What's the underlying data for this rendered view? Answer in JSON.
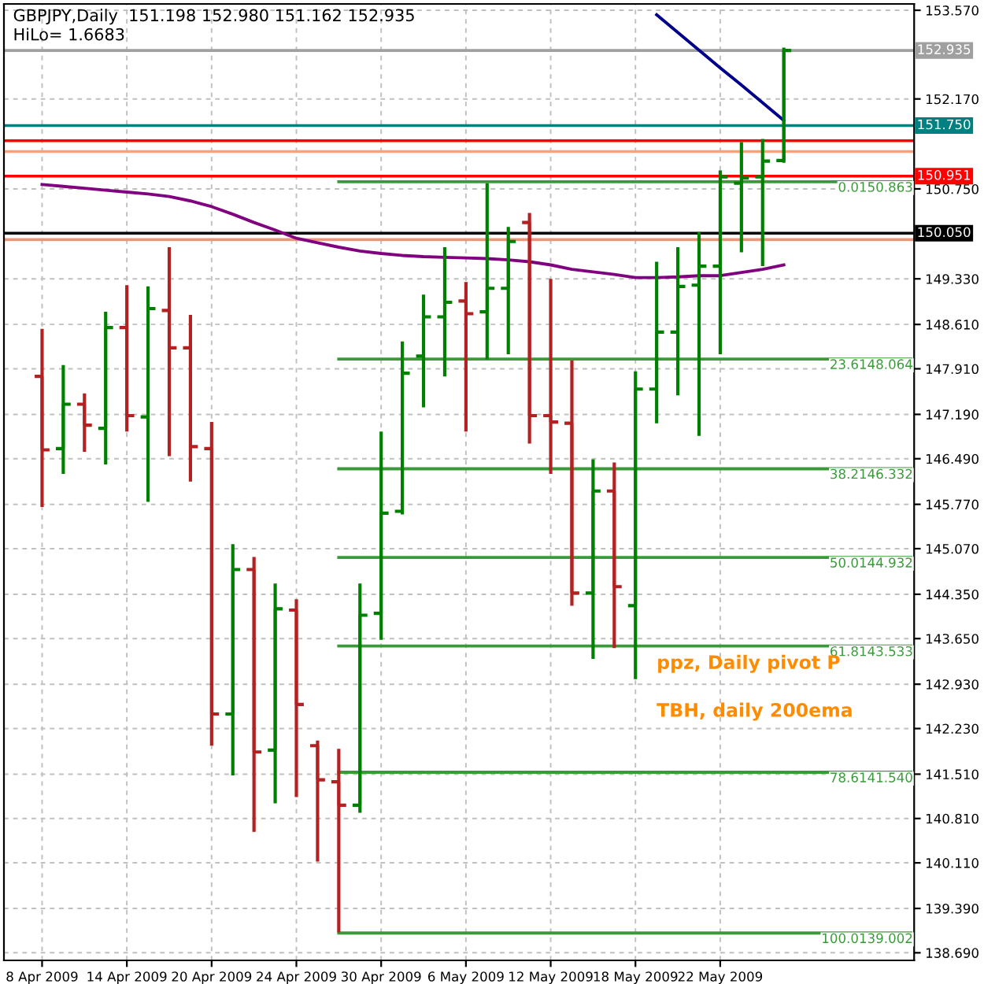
{
  "chart_data": {
    "type": "candlestick",
    "title": "GBPJPY,Daily  151.198 152.980 151.162 152.935",
    "subtitle": "HiLo= 1.6683",
    "categories": [
      "8 Apr 2009",
      null,
      null,
      null,
      "14 Apr 2009",
      null,
      null,
      null,
      "20 Apr 2009",
      null,
      null,
      null,
      "24 Apr 2009",
      null,
      null,
      null,
      "30 Apr 2009",
      null,
      null,
      null,
      "6 May 2009",
      null,
      null,
      null,
      "12 May 2009",
      null,
      null,
      null,
      "18 May 2009",
      null,
      null,
      null,
      "22 May 2009",
      null,
      null,
      null,
      null,
      null,
      null,
      null,
      null,
      null
    ],
    "ohlc": [
      [
        147.79,
        148.54,
        145.73,
        146.63
      ],
      [
        146.65,
        147.97,
        146.25,
        147.35
      ],
      [
        147.35,
        147.52,
        146.6,
        147.02
      ],
      [
        146.97,
        148.81,
        146.4,
        148.56
      ],
      [
        148.56,
        149.23,
        146.92,
        147.17
      ],
      [
        147.15,
        149.21,
        145.81,
        148.86
      ],
      [
        148.83,
        149.83,
        146.53,
        148.24
      ],
      [
        148.24,
        148.76,
        146.13,
        146.68
      ],
      [
        146.65,
        147.07,
        141.96,
        142.46
      ],
      [
        142.46,
        145.14,
        141.49,
        144.74
      ],
      [
        144.74,
        144.94,
        140.6,
        141.86
      ],
      [
        141.89,
        144.52,
        141.05,
        144.12
      ],
      [
        144.1,
        144.27,
        141.15,
        142.61
      ],
      [
        141.96,
        142.04,
        140.13,
        141.42
      ],
      [
        141.39,
        141.91,
        139.01,
        141.02
      ],
      [
        141.02,
        144.52,
        140.9,
        144.02
      ],
      [
        144.05,
        146.92,
        143.63,
        145.63
      ],
      [
        145.66,
        148.34,
        145.61,
        147.84
      ],
      [
        148.11,
        149.08,
        147.3,
        148.73
      ],
      [
        148.73,
        149.83,
        147.79,
        148.96
      ],
      [
        148.98,
        149.28,
        146.92,
        148.78
      ],
      [
        148.81,
        150.84,
        148.06,
        149.18
      ],
      [
        149.18,
        150.15,
        148.14,
        149.92
      ],
      [
        150.22,
        150.37,
        146.73,
        147.17
      ],
      [
        147.17,
        149.33,
        146.25,
        147.07
      ],
      [
        147.05,
        148.04,
        144.17,
        144.37
      ],
      [
        144.37,
        146.48,
        143.33,
        145.98
      ],
      [
        145.98,
        146.43,
        143.5,
        144.47
      ],
      [
        144.17,
        147.87,
        143.01,
        147.59
      ],
      [
        147.59,
        149.6,
        147.05,
        148.49
      ],
      [
        148.49,
        149.83,
        147.49,
        149.21
      ],
      [
        149.23,
        150.07,
        146.85,
        149.53
      ],
      [
        149.53,
        151.04,
        148.14,
        150.94
      ],
      [
        150.84,
        151.49,
        149.75,
        150.92
      ],
      [
        150.94,
        151.54,
        149.53,
        151.19
      ],
      [
        151.198,
        152.98,
        151.162,
        152.935
      ],
      null,
      null,
      null,
      null,
      null,
      null
    ],
    "colors": [
      "#b22222",
      "#008000",
      "#b22222",
      "#008000",
      "#b22222",
      "#008000",
      "#b22222",
      "#b22222",
      "#b22222",
      "#008000",
      "#b22222",
      "#008000",
      "#b22222",
      "#b22222",
      "#b22222",
      "#008000",
      "#008000",
      "#008000",
      "#008000",
      "#008000",
      "#b22222",
      "#008000",
      "#008000",
      "#b22222",
      "#b22222",
      "#b22222",
      "#008000",
      "#b22222",
      "#008000",
      "#008000",
      "#008000",
      "#008000",
      "#008000",
      "#008000",
      "#008000",
      "#008000",
      null,
      null,
      null,
      null,
      null,
      null
    ],
    "series": [
      {
        "type": "line",
        "color": "#800080",
        "values": [
          150.82,
          150.79,
          150.76,
          150.73,
          150.7,
          150.67,
          150.63,
          150.56,
          150.47,
          150.35,
          150.22,
          150.1,
          149.97,
          149.9,
          149.83,
          149.77,
          149.73,
          149.7,
          149.68,
          149.67,
          149.66,
          149.65,
          149.63,
          149.6,
          149.55,
          149.48,
          149.44,
          149.4,
          149.35,
          149.35,
          149.36,
          149.38,
          149.38,
          149.43,
          149.48,
          149.55,
          null,
          null,
          null,
          null,
          null,
          null
        ]
      },
      {
        "type": "line",
        "color": "#00008b",
        "values": [
          null,
          null,
          null,
          null,
          null,
          null,
          null,
          null,
          null,
          null,
          null,
          null,
          null,
          null,
          null,
          null,
          null,
          null,
          null,
          null,
          null,
          null,
          null,
          null,
          null,
          null,
          null,
          null,
          null,
          153.5,
          153.22,
          152.94,
          152.66,
          152.39,
          152.11,
          151.83,
          null,
          null,
          null,
          null,
          null,
          null
        ]
      },
      {
        "type": "line",
        "name": "0.0150.863",
        "color": "#3a9a3a",
        "values": [
          null,
          null,
          null,
          null,
          null,
          null,
          null,
          null,
          null,
          null,
          null,
          null,
          null,
          null,
          150.863,
          150.863,
          150.863,
          150.863,
          150.863,
          150.863,
          150.863,
          150.863,
          150.863,
          150.863,
          150.863,
          150.863,
          150.863,
          150.863,
          150.863,
          150.863,
          150.863,
          150.863,
          150.863,
          150.863,
          150.863,
          150.863,
          150.863,
          150.863,
          150.863,
          150.863,
          150.863,
          150.863
        ]
      },
      {
        "type": "line",
        "name": "23.6148.064",
        "color": "#3a9a3a",
        "values": [
          null,
          null,
          null,
          null,
          null,
          null,
          null,
          null,
          null,
          null,
          null,
          null,
          null,
          null,
          148.064,
          148.064,
          148.064,
          148.064,
          148.064,
          148.064,
          148.064,
          148.064,
          148.064,
          148.064,
          148.064,
          148.064,
          148.064,
          148.064,
          148.064,
          148.064,
          148.064,
          148.064,
          148.064,
          148.064,
          148.064,
          148.064,
          148.064,
          148.064,
          148.064,
          148.064,
          148.064,
          148.064
        ]
      },
      {
        "type": "line",
        "name": "38.2146.332",
        "color": "#3a9a3a",
        "values": [
          null,
          null,
          null,
          null,
          null,
          null,
          null,
          null,
          null,
          null,
          null,
          null,
          null,
          null,
          146.332,
          146.332,
          146.332,
          146.332,
          146.332,
          146.332,
          146.332,
          146.332,
          146.332,
          146.332,
          146.332,
          146.332,
          146.332,
          146.332,
          146.332,
          146.332,
          146.332,
          146.332,
          146.332,
          146.332,
          146.332,
          146.332,
          146.332,
          146.332,
          146.332,
          146.332,
          146.332,
          146.332
        ]
      },
      {
        "type": "line",
        "name": "50.0144.932",
        "color": "#3a9a3a",
        "values": [
          null,
          null,
          null,
          null,
          null,
          null,
          null,
          null,
          null,
          null,
          null,
          null,
          null,
          null,
          144.932,
          144.932,
          144.932,
          144.932,
          144.932,
          144.932,
          144.932,
          144.932,
          144.932,
          144.932,
          144.932,
          144.932,
          144.932,
          144.932,
          144.932,
          144.932,
          144.932,
          144.932,
          144.932,
          144.932,
          144.932,
          144.932,
          144.932,
          144.932,
          144.932,
          144.932,
          144.932,
          144.932
        ]
      },
      {
        "type": "line",
        "name": "61.8143.533",
        "color": "#3a9a3a",
        "values": [
          null,
          null,
          null,
          null,
          null,
          null,
          null,
          null,
          null,
          null,
          null,
          null,
          null,
          null,
          143.533,
          143.533,
          143.533,
          143.533,
          143.533,
          143.533,
          143.533,
          143.533,
          143.533,
          143.533,
          143.533,
          143.533,
          143.533,
          143.533,
          143.533,
          143.533,
          143.533,
          143.533,
          143.533,
          143.533,
          143.533,
          143.533,
          143.533,
          143.533,
          143.533,
          143.533,
          143.533,
          143.533
        ]
      },
      {
        "type": "line",
        "name": "78.6141.540",
        "color": "#3a9a3a",
        "values": [
          null,
          null,
          null,
          null,
          null,
          null,
          null,
          null,
          null,
          null,
          null,
          null,
          null,
          null,
          141.54,
          141.54,
          141.54,
          141.54,
          141.54,
          141.54,
          141.54,
          141.54,
          141.54,
          141.54,
          141.54,
          141.54,
          141.54,
          141.54,
          141.54,
          141.54,
          141.54,
          141.54,
          141.54,
          141.54,
          141.54,
          141.54,
          141.54,
          141.54,
          141.54,
          141.54,
          141.54,
          141.54
        ]
      },
      {
        "type": "line",
        "name": "100.0139.002",
        "color": "#3a9a3a",
        "values": [
          null,
          null,
          null,
          null,
          null,
          null,
          null,
          null,
          null,
          null,
          null,
          null,
          null,
          null,
          139.002,
          139.002,
          139.002,
          139.002,
          139.002,
          139.002,
          139.002,
          139.002,
          139.002,
          139.002,
          139.002,
          139.002,
          139.002,
          139.002,
          139.002,
          139.002,
          139.002,
          139.002,
          139.002,
          139.002,
          139.002,
          139.002,
          139.002,
          139.002,
          139.002,
          139.002,
          139.002,
          139.002
        ]
      }
    ],
    "ref_lines": [
      {
        "axis": "y",
        "value": 152.935,
        "label": "152.935",
        "color": "#a0a0a0"
      },
      {
        "axis": "y",
        "value": 151.75,
        "label": "151.750",
        "color": "#008080"
      },
      {
        "axis": "y",
        "value": 151.51,
        "color": "#ff0000"
      },
      {
        "axis": "y",
        "value": 151.34,
        "color": "#ffa07a"
      },
      {
        "axis": "y",
        "value": 150.951,
        "label": "150.951",
        "color": "#ff0000"
      },
      {
        "axis": "y",
        "value": 150.05,
        "label": "150.050",
        "color": "#000000"
      },
      {
        "axis": "y",
        "value": 149.95,
        "color": "#e9967a"
      }
    ],
    "annotations": [
      "ppz, Daily pivot P",
      "TBH, daily 200ema"
    ],
    "ylim": [
      138.57,
      153.67
    ],
    "yticks": [
      {
        "value": 153.57,
        "label": "153.570"
      },
      {
        "value": 152.17,
        "label": "152.170"
      },
      {
        "value": 150.75,
        "label": "150.750"
      },
      {
        "value": 149.33,
        "label": "149.330"
      },
      {
        "value": 148.61,
        "label": "148.610"
      },
      {
        "value": 147.91,
        "label": "147.910"
      },
      {
        "value": 147.19,
        "label": "147.190"
      },
      {
        "value": 146.49,
        "label": "146.490"
      },
      {
        "value": 145.77,
        "label": "145.770"
      },
      {
        "value": 145.07,
        "label": "145.070"
      },
      {
        "value": 144.35,
        "label": "144.350"
      },
      {
        "value": 143.65,
        "label": "143.650"
      },
      {
        "value": 142.93,
        "label": "142.930"
      },
      {
        "value": 142.23,
        "label": "142.230"
      },
      {
        "value": 141.51,
        "label": "141.510"
      },
      {
        "value": 140.81,
        "label": "140.810"
      },
      {
        "value": 140.11,
        "label": "140.110"
      },
      {
        "value": 139.39,
        "label": "139.390"
      },
      {
        "value": 138.69,
        "label": "138.690"
      }
    ],
    "grid": true
  }
}
